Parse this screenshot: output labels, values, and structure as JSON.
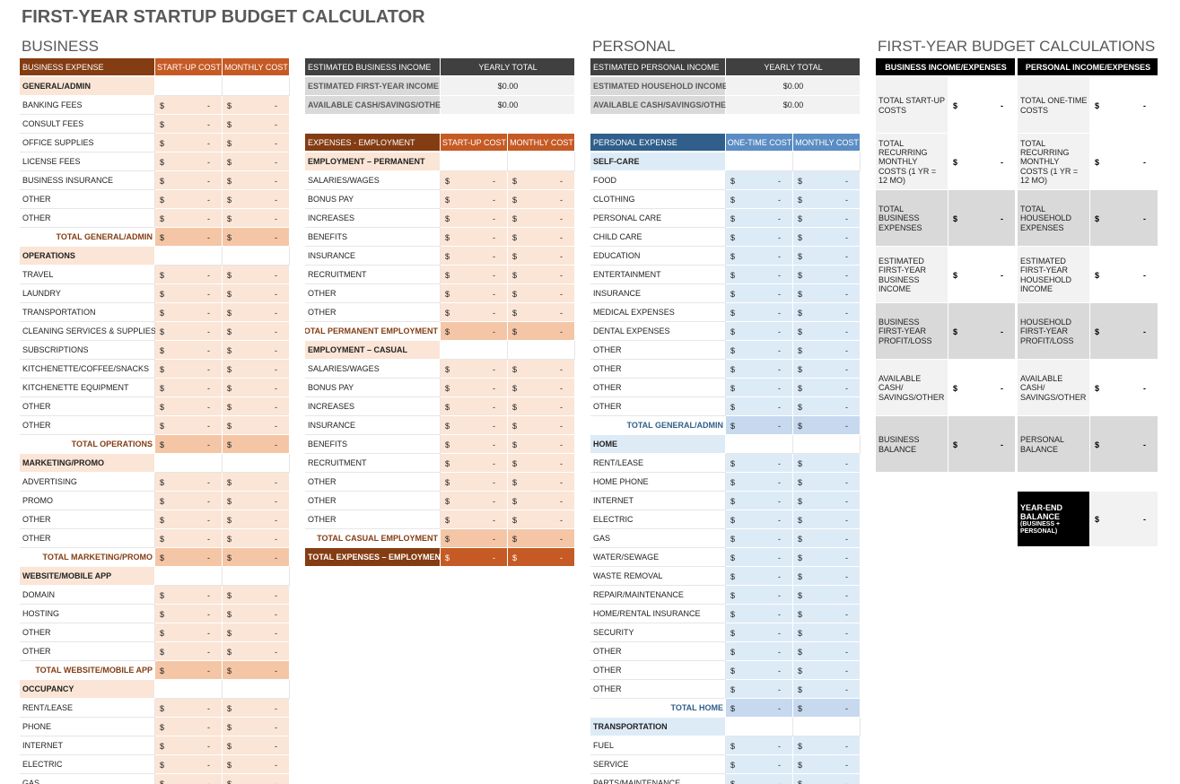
{
  "title": "FIRST-YEAR STARTUP BUDGET CALCULATOR",
  "blank_amount": {
    "currency": "$",
    "amount": "-"
  },
  "business": {
    "heading": "BUSINESS",
    "expenses": {
      "columns": [
        "BUSINESS EXPENSE",
        "START-UP COST",
        "MONTHLY COST"
      ],
      "sections": [
        {
          "title": "GENERAL/ADMIN",
          "items": [
            "BANKING FEES",
            "CONSULT FEES",
            "OFFICE SUPPLIES",
            "LICENSE FEES",
            "BUSINESS INSURANCE",
            "OTHER",
            "OTHER"
          ],
          "total": "TOTAL GENERAL/ADMIN"
        },
        {
          "title": "OPERATIONS",
          "items": [
            "TRAVEL",
            "LAUNDRY",
            "TRANSPORTATION",
            "CLEANING SERVICES & SUPPLIES",
            "SUBSCRIPTIONS",
            "KITCHENETTE/COFFEE/SNACKS",
            "KITCHENETTE EQUIPMENT",
            "OTHER",
            "OTHER"
          ],
          "total": "TOTAL OPERATIONS"
        },
        {
          "title": "MARKETING/PROMO",
          "items": [
            "ADVERTISING",
            "PROMO",
            "OTHER",
            "OTHER"
          ],
          "total": "TOTAL MARKETING/PROMO"
        },
        {
          "title": "WEBSITE/MOBILE APP",
          "items": [
            "DOMAIN",
            "HOSTING",
            "OTHER",
            "OTHER"
          ],
          "total": "TOTAL WEBSITE/MOBILE APP"
        },
        {
          "title": "OCCUPANCY",
          "items": [
            "RENT/LEASE",
            "PHONE",
            "INTERNET",
            "ELECTRIC",
            "GAS"
          ]
        }
      ]
    }
  },
  "employment": {
    "income": {
      "columns": [
        "ESTIMATED BUSINESS INCOME",
        "YEARLY TOTAL"
      ],
      "rows": [
        {
          "label": "ESTIMATED FIRST-YEAR INCOME",
          "value": "$0.00"
        },
        {
          "label": "AVAILABLE CASH/SAVINGS/OTHER",
          "value": "$0.00"
        }
      ]
    },
    "expenses": {
      "columns": [
        "EXPENSES - EMPLOYMENT",
        "START-UP COST",
        "MONTHLY COST"
      ],
      "sections": [
        {
          "title": "EMPLOYMENT – PERMANENT",
          "items": [
            "SALARIES/WAGES",
            "BONUS PAY",
            "INCREASES",
            "BENEFITS",
            "INSURANCE",
            "RECRUITMENT",
            "OTHER",
            "OTHER"
          ],
          "total": "TOTAL PERMANENT EMPLOYMENT"
        },
        {
          "title": "EMPLOYMENT – CASUAL",
          "items": [
            "SALARIES/WAGES",
            "BONUS PAY",
            "INCREASES",
            "INSURANCE",
            "BENEFITS",
            "RECRUITMENT",
            "OTHER",
            "OTHER",
            "OTHER"
          ],
          "total": "TOTAL CASUAL EMPLOYMENT"
        }
      ],
      "grand_total": "TOTAL EXPENSES – EMPLOYMENT"
    }
  },
  "personal": {
    "heading": "PERSONAL",
    "income": {
      "columns": [
        "ESTIMATED PERSONAL INCOME",
        "YEARLY TOTAL"
      ],
      "rows": [
        {
          "label": "ESTIMATED HOUSEHOLD INCOME",
          "value": "$0.00"
        },
        {
          "label": "AVAILABLE CASH/SAVINGS/OTHER",
          "value": "$0.00"
        }
      ]
    },
    "expenses": {
      "columns": [
        "PERSONAL EXPENSE",
        "ONE-TIME COST",
        "MONTHLY COST"
      ],
      "sections": [
        {
          "title": "SELF-CARE",
          "items": [
            "FOOD",
            "CLOTHING",
            "PERSONAL CARE",
            "CHILD CARE",
            "EDUCATION",
            "ENTERTAINMENT",
            "INSURANCE",
            "MEDICAL EXPENSES",
            "DENTAL EXPENSES",
            "OTHER",
            "OTHER",
            "OTHER",
            "OTHER"
          ],
          "total": "TOTAL GENERAL/ADMIN"
        },
        {
          "title": "HOME",
          "items": [
            "RENT/LEASE",
            "HOME PHONE",
            "INTERNET",
            "ELECTRIC",
            "GAS",
            "WATER/SEWAGE",
            "WASTE REMOVAL",
            "REPAIR/MAINTENANCE",
            "HOME/RENTAL INSURANCE",
            "SECURITY",
            "OTHER",
            "OTHER",
            "OTHER"
          ],
          "total": "TOTAL HOME"
        },
        {
          "title": "TRANSPORTATION",
          "items": [
            "FUEL",
            "SERVICE",
            "PARTS/MAINTENANCE"
          ]
        }
      ]
    }
  },
  "calculations": {
    "heading": "FIRST-YEAR BUDGET CALCULATIONS",
    "columns": [
      "BUSINESS INCOME/EXPENSES",
      "PERSONAL INCOME/EXPENSES"
    ],
    "rows": [
      {
        "business": "TOTAL START-UP COSTS",
        "personal": "TOTAL ONE-TIME COSTS"
      },
      {
        "business": "TOTAL RECURRING MONTHLY COSTS (1 YR = 12 MO)",
        "personal": "TOTAL RECURRING MONTHLY COSTS (1 YR = 12 MO)"
      },
      {
        "business": "TOTAL BUSINESS EXPENSES",
        "personal": "TOTAL HOUSEHOLD EXPENSES"
      },
      {
        "business": "ESTIMATED FIRST-YEAR BUSINESS INCOME",
        "personal": "ESTIMATED FIRST-YEAR HOUSEHOLD INCOME"
      },
      {
        "business": "BUSINESS FIRST-YEAR PROFIT/LOSS",
        "personal": "HOUSEHOLD FIRST-YEAR PROFIT/LOSS"
      },
      {
        "business": "AVAILABLE CASH/ SAVINGS/OTHER",
        "personal": "AVAILABLE CASH/ SAVINGS/OTHER"
      },
      {
        "business": "BUSINESS BALANCE",
        "personal": "PERSONAL BALANCE"
      }
    ],
    "year_end": {
      "label": "YEAR-END BALANCE",
      "note": "(BUSINESS + PERSONAL)"
    }
  }
}
